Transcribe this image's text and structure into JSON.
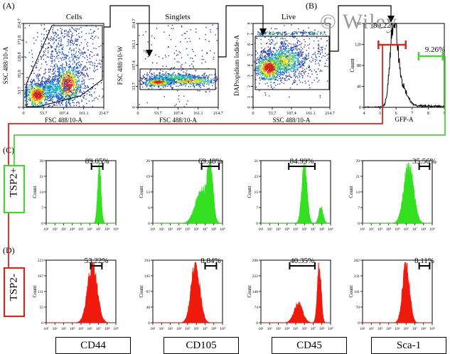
{
  "panel_letters": {
    "a": "(A)",
    "b": "(B)",
    "c": "(C)",
    "d": "(D)"
  },
  "watermark": "© Wiley",
  "groups": {
    "pos": "TSP2+",
    "neg": "TSP2-"
  },
  "markers": [
    "CD44",
    "CD105",
    "CD45",
    "Sca-1"
  ],
  "colors": {
    "pos": "#33e01f",
    "neg": "#ef1a0c",
    "pos_line": "#4ed13a",
    "neg_line": "#d8271c"
  },
  "chart_data": [
    {
      "id": "cells",
      "type": "scatter",
      "title": "Cells",
      "xlabel": "FSC 488/10-A",
      "ylabel": "SSC 488/10-A",
      "xticks": [
        "0",
        "53.7",
        "107.4",
        "161.1",
        "214.7"
      ],
      "yticks": [
        "0",
        "53.7",
        "85.9",
        "128.8",
        "171.8",
        "214.7"
      ]
    },
    {
      "id": "singlets",
      "type": "scatter",
      "title": "Singlets",
      "xlabel": "FSC 488/10-A",
      "ylabel": "FSC 488/10-W",
      "xticks": [
        "0",
        "53.7",
        "107.4",
        "161.1",
        "214.7"
      ],
      "yticks": [
        "0",
        "53.7",
        "107.4",
        "161.1",
        "214.7"
      ]
    },
    {
      "id": "live",
      "type": "scatter",
      "title": "Live",
      "xlabel": "SSC 488/10-A",
      "ylabel": "DAPropidium Iodide-A",
      "xticks": [
        "0",
        "53.7",
        "107.4",
        "161.1",
        "214.7"
      ],
      "yticks": [
        "0",
        "1",
        "2",
        "3",
        "4",
        "5",
        "6",
        "7",
        "8"
      ]
    },
    {
      "id": "gfp",
      "type": "line",
      "xlabel": "GFP-A",
      "ylabel": "Count",
      "xticks": [
        "4",
        "5",
        "6",
        "7",
        "8",
        "9"
      ],
      "yticks": [
        "0",
        "40",
        "80",
        "120",
        "160"
      ],
      "ylim": [
        0,
        175
      ],
      "gates": [
        {
          "label": "89.22%",
          "color": "neg",
          "from": 4.9,
          "to": 6.6
        },
        {
          "label": "9.26%",
          "color": "pos",
          "from": 7.4,
          "to": 8.9
        }
      ]
    },
    {
      "id": "c-cd44",
      "type": "histogram",
      "group": "pos",
      "marker": "CD44",
      "ylabel": "Count",
      "ymax": 28,
      "yticks": [
        "0",
        "7",
        "14",
        "21",
        "28"
      ],
      "gate": {
        "label": "89.05%",
        "from": 6.2,
        "to": 7.5
      },
      "peaks": [
        [
          7.1,
          0.2,
          1.0
        ]
      ]
    },
    {
      "id": "c-cd105",
      "type": "histogram",
      "group": "pos",
      "marker": "CD105",
      "ylabel": "Count",
      "ymax": 26,
      "yticks": [
        "0",
        "6",
        "13",
        "19",
        "26"
      ],
      "gate": {
        "label": "69.48%",
        "from": 6.6,
        "to": 8.6
      },
      "peaks": [
        [
          6.6,
          0.7,
          0.55
        ],
        [
          7.6,
          0.3,
          0.9
        ]
      ]
    },
    {
      "id": "c-cd45",
      "type": "histogram",
      "group": "pos",
      "marker": "CD45",
      "ylabel": "Count",
      "ymax": 31,
      "yticks": [
        "0",
        "7",
        "15",
        "23",
        "31"
      ],
      "gate": {
        "label": "84.99%",
        "from": 4.2,
        "to": 7.2
      },
      "peaks": [
        [
          6.0,
          0.3,
          1.0
        ],
        [
          7.9,
          0.25,
          0.28
        ]
      ]
    },
    {
      "id": "c-sca1",
      "type": "histogram",
      "group": "pos",
      "marker": "Sca-1",
      "ylabel": "Count",
      "ymax": 29,
      "yticks": [
        "0",
        "7",
        "14",
        "21",
        "29"
      ],
      "gate": {
        "label": "35.56%",
        "from": 7.5,
        "to": 8.7
      },
      "peaks": [
        [
          6.3,
          0.55,
          1.0
        ]
      ]
    },
    {
      "id": "d-cd44",
      "type": "histogram",
      "group": "neg",
      "marker": "CD44",
      "ylabel": "Count",
      "ymax": 223,
      "yticks": [
        "0",
        "55",
        "111",
        "167",
        "223"
      ],
      "gate": {
        "label": "53.22%",
        "from": 6.1,
        "to": 7.4
      },
      "peaks": [
        [
          6.3,
          0.55,
          1.0
        ]
      ]
    },
    {
      "id": "d-cd105",
      "type": "histogram",
      "group": "neg",
      "marker": "CD105",
      "ylabel": "Count",
      "ymax": 194,
      "yticks": [
        "0",
        "48",
        "97",
        "145",
        "194"
      ],
      "gate": {
        "label": "8.84%",
        "from": 7.0,
        "to": 8.3
      },
      "peaks": [
        [
          5.9,
          0.5,
          1.0
        ]
      ]
    },
    {
      "id": "d-cd45",
      "type": "histogram",
      "group": "neg",
      "marker": "CD45",
      "ylabel": "Count",
      "ymax": 296,
      "yticks": [
        "0",
        "74",
        "148",
        "222",
        "296"
      ],
      "gate": {
        "label": "40.35%",
        "from": 4.3,
        "to": 7.2
      },
      "peaks": [
        [
          5.3,
          0.5,
          0.33
        ],
        [
          7.7,
          0.22,
          1.0
        ]
      ]
    },
    {
      "id": "d-sca1",
      "type": "histogram",
      "group": "neg",
      "marker": "Sca-1",
      "ylabel": "Count",
      "ymax": 282,
      "yticks": [
        "0",
        "70",
        "141",
        "211",
        "282"
      ],
      "gate": {
        "label": "8.11%",
        "from": 7.5,
        "to": 8.7
      },
      "peaks": [
        [
          6.0,
          0.4,
          1.0
        ]
      ]
    }
  ]
}
